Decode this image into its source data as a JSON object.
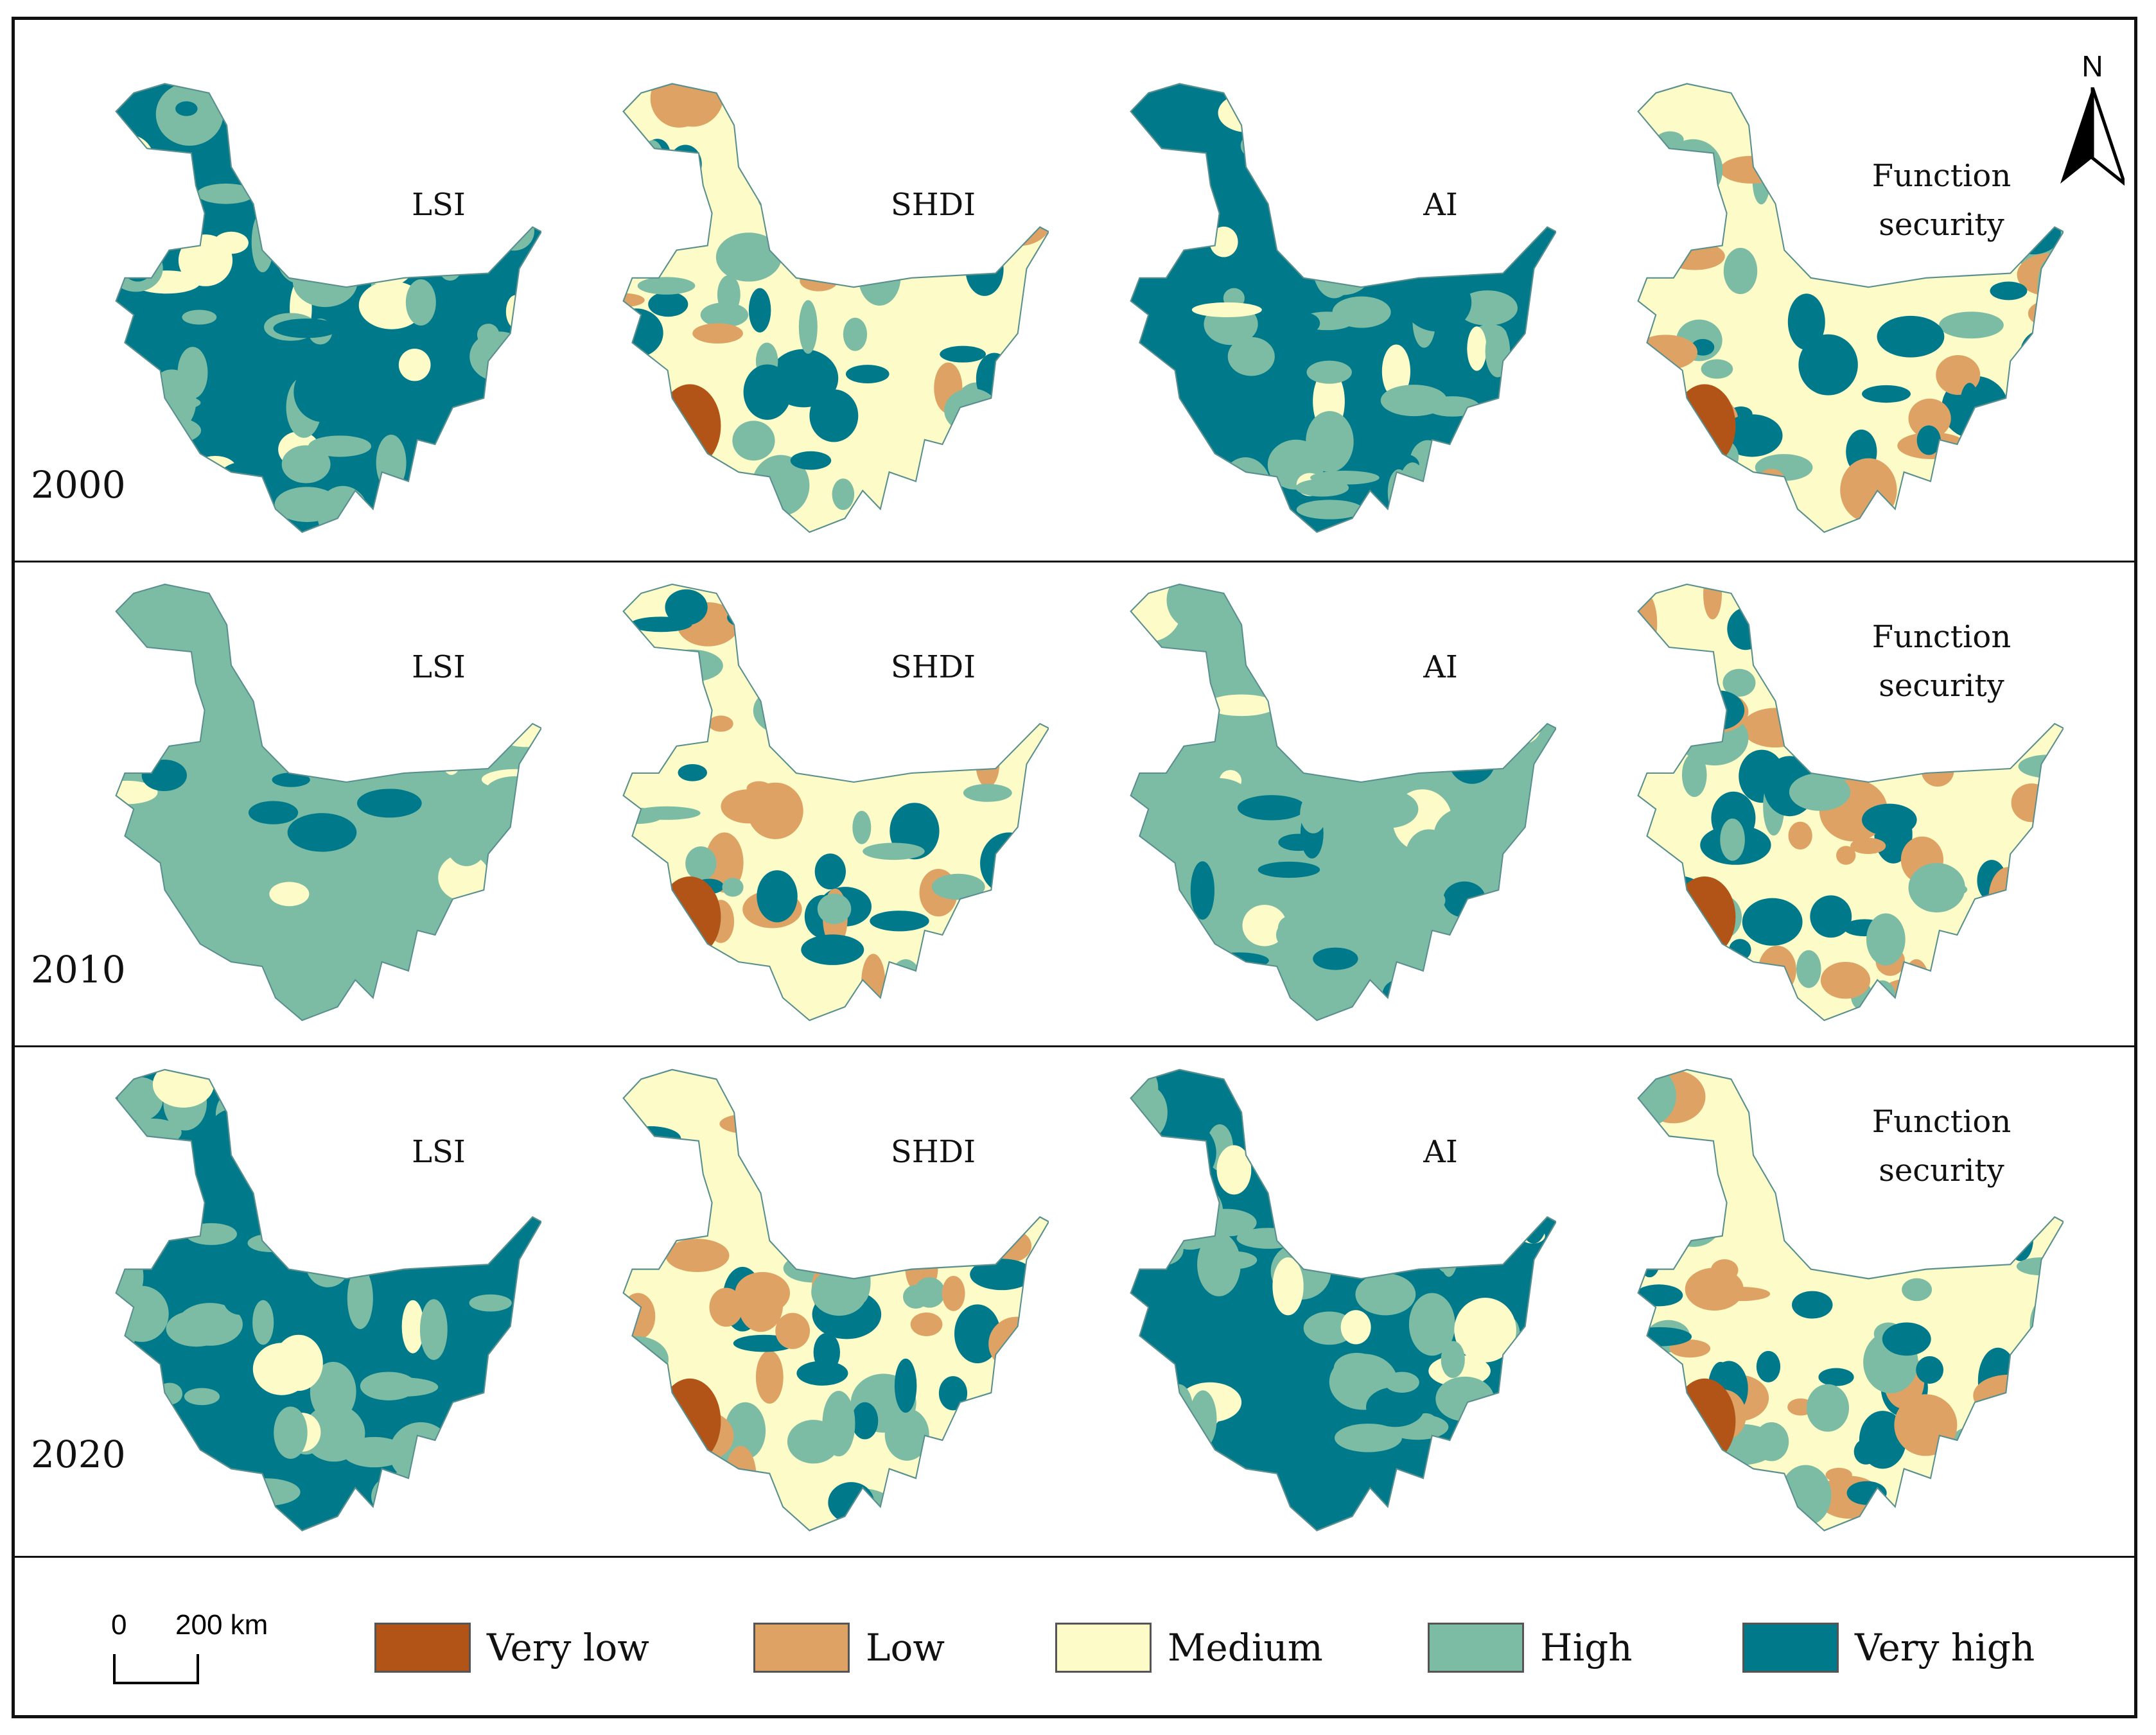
{
  "years": [
    "2000",
    "2010",
    "2020"
  ],
  "indicators": [
    "LSI",
    "SHDI",
    "AI",
    "Function\nsecurity"
  ],
  "north_arrow": {
    "label": "N"
  },
  "scale_bar": {
    "zero": "0",
    "distance": "200 km"
  },
  "legend": [
    {
      "label": "Very low",
      "color": "#b25418"
    },
    {
      "label": "Low",
      "color": "#dea264"
    },
    {
      "label": "Medium",
      "color": "#fdfbc7"
    },
    {
      "label": "High",
      "color": "#7dbca4"
    },
    {
      "label": "Very high",
      "color": "#007a8a"
    }
  ],
  "map_dominant_class": [
    [
      "Very high",
      "Medium",
      "Very high",
      "Medium"
    ],
    [
      "High",
      "Medium",
      "High",
      "Medium"
    ],
    [
      "Very high",
      "Medium",
      "Very high",
      "Medium"
    ]
  ]
}
